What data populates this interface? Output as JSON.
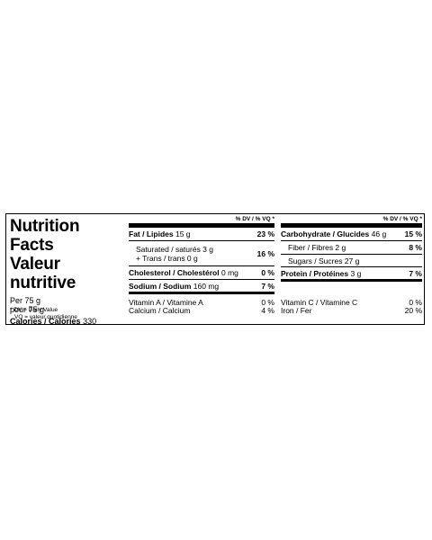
{
  "title_en": "Nutrition Facts",
  "title_fr": "Valeur nutritive",
  "per_en": "Per 75 g",
  "per_fr": "pour 75 g",
  "calories_label": "Calories / Calories",
  "calories_value": "330",
  "footnote_line1": "*  DV = Daily Value",
  "footnote_line2": "VQ = valeur quotidienne",
  "dv_header": "% DV / % VQ *",
  "left_column": {
    "fat_label": "Fat / Lipides",
    "fat_amount": "15 g",
    "fat_pct": "23 %",
    "saturated": "Saturated / saturés 3 g",
    "trans": "+ Trans / trans 0 g",
    "sat_trans_pct": "16 %",
    "chol_label": "Cholesterol / Cholestérol",
    "chol_amount": "0 mg",
    "chol_pct": "0 %",
    "sodium_label": "Sodium / Sodium",
    "sodium_amount": "160 mg",
    "sodium_pct": "7 %",
    "vita_label": "Vitamin A / Vitamine A",
    "vita_pct": "0 %",
    "calcium_label": "Calcium / Calcium",
    "calcium_pct": "4 %"
  },
  "right_column": {
    "carb_label": "Carbohydrate / Glucides",
    "carb_amount": "46 g",
    "carb_pct": "15 %",
    "fiber": "Fiber / Fibres 2 g",
    "fiber_pct": "8 %",
    "sugars": "Sugars / Sucres 27 g",
    "protein_label": "Protein / Protéines",
    "protein_amount": "3 g",
    "protein_pct": "7 %",
    "vitc_label": "Vitamin C / Vitamine C",
    "vitc_pct": "0 %",
    "iron_label": "Iron / Fer",
    "iron_pct": "20 %"
  }
}
